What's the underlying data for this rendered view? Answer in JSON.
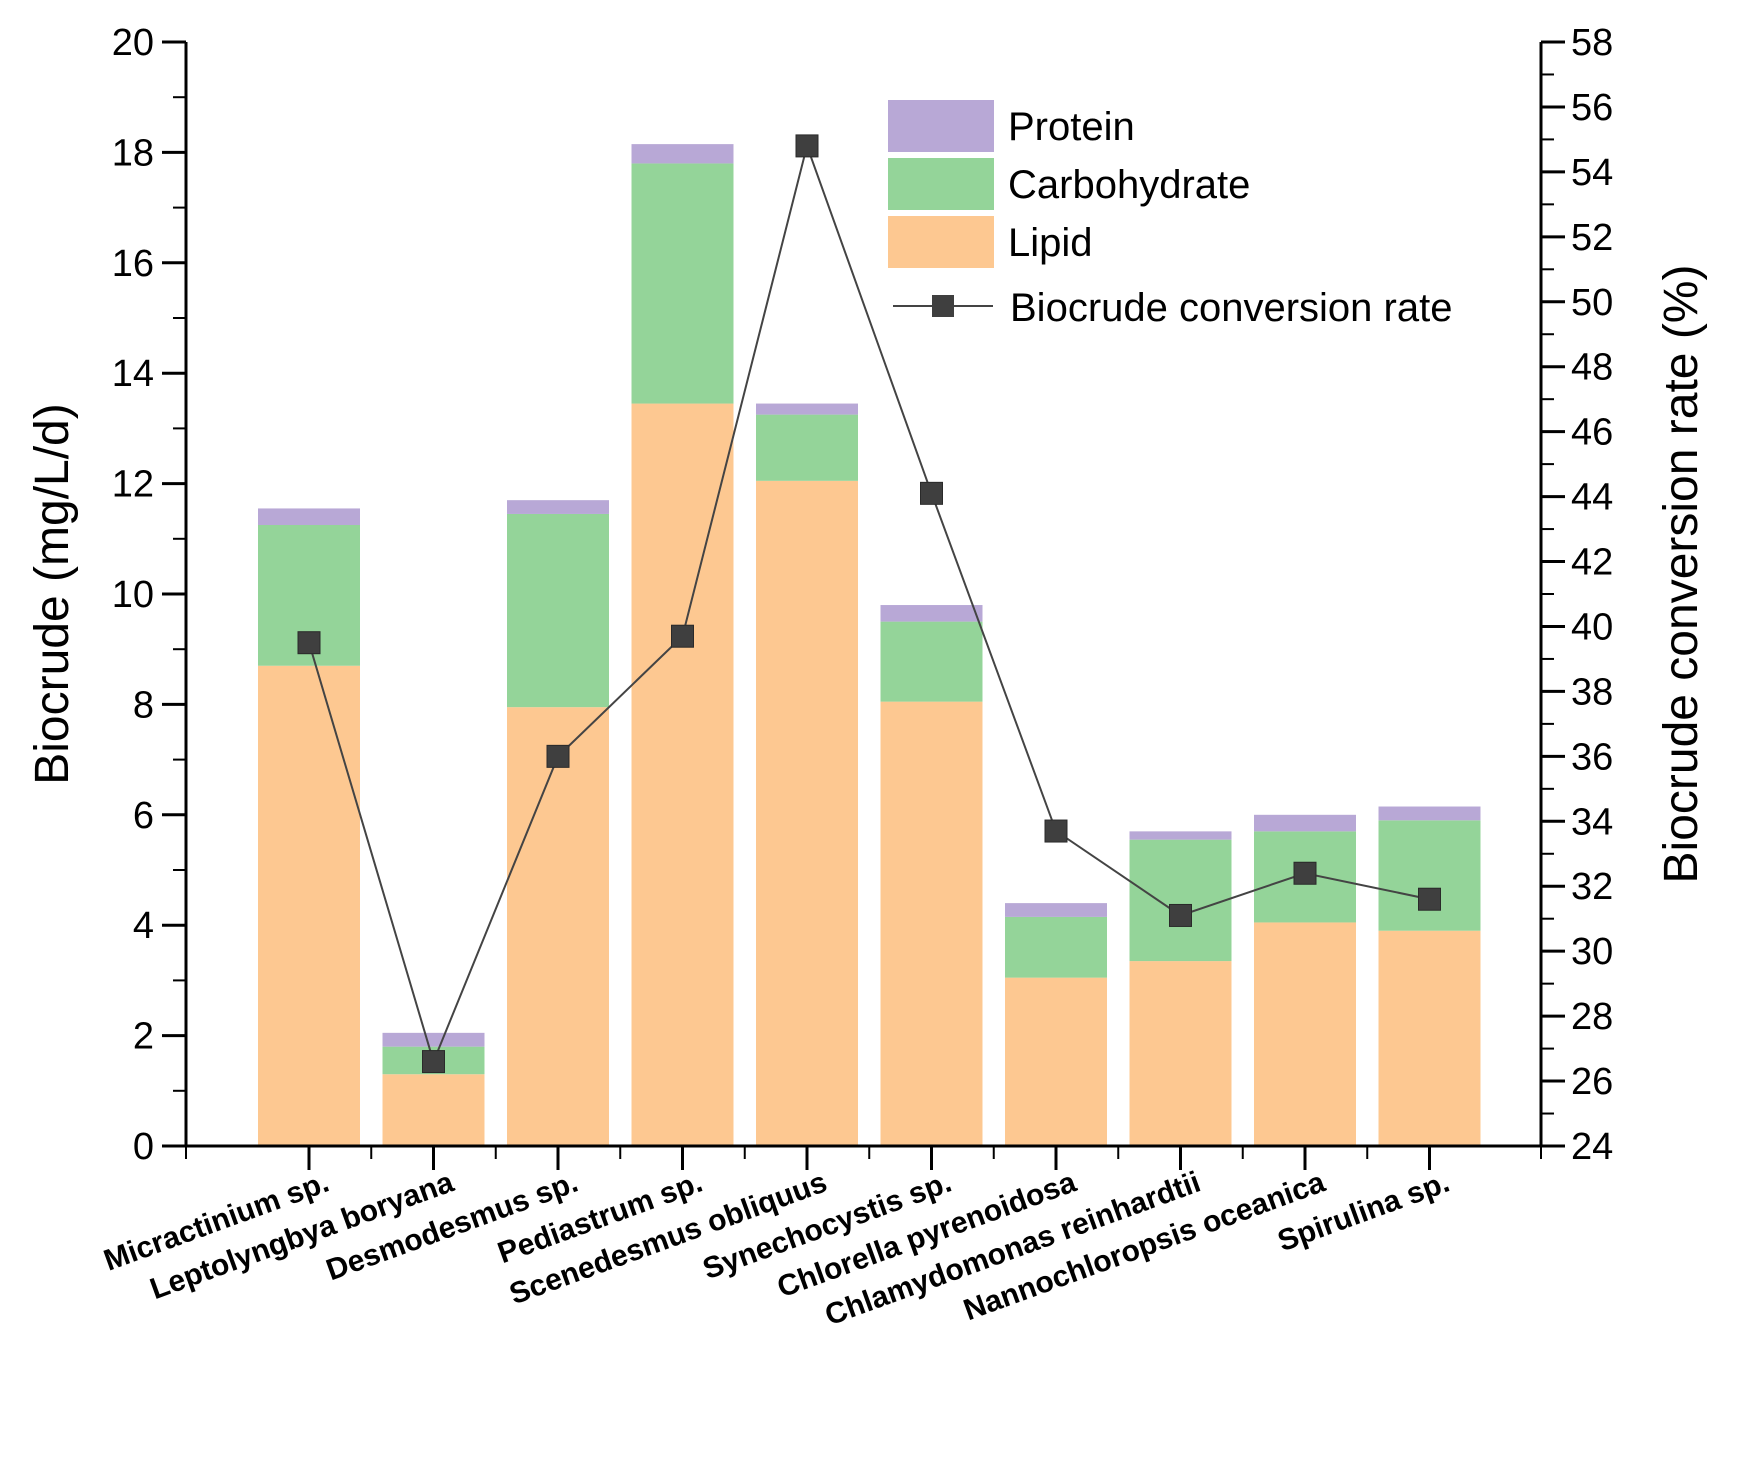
{
  "chart_data": {
    "type": "bar",
    "stacked": true,
    "categories": [
      "Micractinium sp.",
      "Leptolyngbya boryana",
      "Desmodesmus sp.",
      "Pediastrum sp.",
      "Scenedesmus obliquus",
      "Synechocystis sp.",
      "Chlorella pyrenoidosa",
      "Chlamydomonas reinhardtii",
      "Nannochloropsis oceanica",
      "Spirulina sp."
    ],
    "series": [
      {
        "name": "Lipid",
        "color": "#fdc891",
        "values": [
          8.7,
          1.3,
          7.95,
          13.45,
          12.05,
          8.05,
          3.05,
          3.35,
          4.05,
          3.9
        ]
      },
      {
        "name": "Carbohydrate",
        "color": "#94d499",
        "values": [
          2.55,
          0.5,
          3.5,
          4.35,
          1.2,
          1.45,
          1.1,
          2.2,
          1.65,
          2.0
        ]
      },
      {
        "name": "Protein",
        "color": "#b8a8d6",
        "values": [
          0.3,
          0.25,
          0.25,
          0.35,
          0.2,
          0.3,
          0.25,
          0.15,
          0.3,
          0.25
        ]
      }
    ],
    "line_series": {
      "name": "Biocrude conversion rate",
      "color": "#444444",
      "marker_color": "#3f3f3f",
      "axis": "right",
      "values": [
        39.5,
        26.6,
        36.0,
        39.7,
        54.8,
        44.1,
        33.7,
        31.1,
        32.4,
        31.6
      ]
    },
    "xlabel": "",
    "ylabel": "Biocrude (mg/L/d)",
    "ylim": [
      0,
      20
    ],
    "yticks": [
      "0",
      "2",
      "4",
      "6",
      "8",
      "10",
      "12",
      "14",
      "16",
      "18",
      "20"
    ],
    "y2label": "Biocrude conversion rate (%)",
    "y2lim": [
      24,
      58
    ],
    "y2ticks": [
      "24",
      "26",
      "28",
      "30",
      "32",
      "34",
      "36",
      "38",
      "40",
      "42",
      "44",
      "46",
      "48",
      "50",
      "52",
      "54",
      "56",
      "58"
    ],
    "legend": {
      "placement": "top-right",
      "items": [
        "Protein",
        "Carbohydrate",
        "Lipid",
        "Biocrude conversion rate"
      ]
    },
    "grid": false
  }
}
